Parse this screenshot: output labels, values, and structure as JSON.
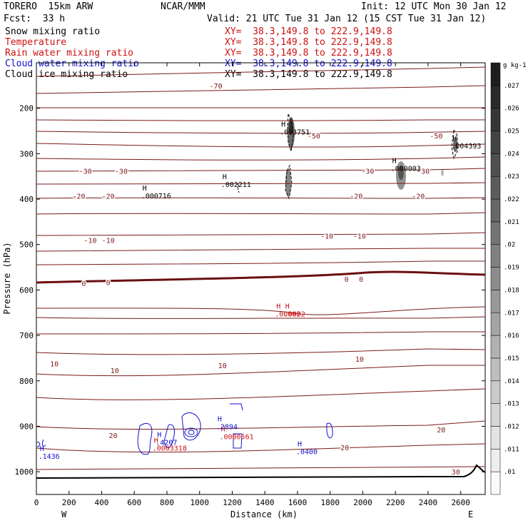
{
  "header": {
    "model": "TORERO  15km ARW",
    "center": "NCAR/MMM",
    "init": "Init: 12 UTC Mon 30 Jan 12",
    "fcst": "Fcst:  33 h",
    "valid": "Valid: 21 UTC Tue 31 Jan 12 (15 CST Tue 31 Jan 12)"
  },
  "legend": [
    {
      "label": "Snow mixing ratio",
      "xy": "XY=  38.3,149.8 to 222.9,149.8",
      "color": "#000000"
    },
    {
      "label": "Temperature",
      "xy": "XY=  38.3,149.8 to 222.9,149.8",
      "color": "#cc1111"
    },
    {
      "label": "Rain water mixing ratio",
      "xy": "XY=  38.3,149.8 to 222.9,149.8",
      "color": "#cc1111"
    },
    {
      "label": "Cloud water mixing ratio",
      "xy": "XY=  38.3,149.8 to 222.9,149.8",
      "color": "#1111cc"
    },
    {
      "label": "Cloud ice mixing ratio",
      "xy": "XY=  38.3,149.8 to 222.9,149.8",
      "color": "#000000"
    }
  ],
  "chart_data": {
    "type": "cross-section",
    "xlabel": "Distance (km)",
    "ylabel": "Pressure (hPa)",
    "xlim": [
      0,
      2750
    ],
    "ylim": [
      1050,
      100
    ],
    "xticks": [
      0,
      200,
      400,
      600,
      800,
      1000,
      1200,
      1400,
      1600,
      1800,
      2000,
      2200,
      2400,
      2600
    ],
    "yticks": [
      200,
      300,
      400,
      500,
      600,
      700,
      800,
      900,
      1000
    ],
    "x_end_labels": {
      "left": "W",
      "right": "E"
    },
    "colorbar": {
      "unit": "g kg-1",
      "ticks": [
        ".01",
        ".011",
        ".012",
        ".013",
        ".014",
        ".015",
        ".016",
        ".017",
        ".018",
        ".019",
        ".02",
        ".021",
        ".022",
        ".023",
        ".024",
        ".025",
        ".026",
        ".027"
      ]
    },
    "temperature_labels": [
      {
        "x": 1100,
        "p": 150,
        "t": "-70"
      },
      {
        "x": 1700,
        "p": 260,
        "t": "-50"
      },
      {
        "x": 2450,
        "p": 260,
        "t": "-50"
      },
      {
        "x": 300,
        "p": 338,
        "t": "-30"
      },
      {
        "x": 520,
        "p": 338,
        "t": "-30"
      },
      {
        "x": 2030,
        "p": 338,
        "t": "-30"
      },
      {
        "x": 2370,
        "p": 338,
        "t": "-30"
      },
      {
        "x": 260,
        "p": 393,
        "t": "-20"
      },
      {
        "x": 440,
        "p": 393,
        "t": "-20"
      },
      {
        "x": 1960,
        "p": 393,
        "t": "-20"
      },
      {
        "x": 2340,
        "p": 393,
        "t": "-20"
      },
      {
        "x": 330,
        "p": 490,
        "t": "-10"
      },
      {
        "x": 440,
        "p": 490,
        "t": "-10"
      },
      {
        "x": 1780,
        "p": 481,
        "t": "-10"
      },
      {
        "x": 1980,
        "p": 481,
        "t": "-10"
      },
      {
        "x": 290,
        "p": 585,
        "t": "0"
      },
      {
        "x": 440,
        "p": 583,
        "t": "0"
      },
      {
        "x": 1900,
        "p": 576,
        "t": "0"
      },
      {
        "x": 1990,
        "p": 576,
        "t": "0"
      },
      {
        "x": 110,
        "p": 762,
        "t": "10"
      },
      {
        "x": 480,
        "p": 777,
        "t": "10"
      },
      {
        "x": 1140,
        "p": 766,
        "t": "10"
      },
      {
        "x": 1980,
        "p": 752,
        "t": "10"
      },
      {
        "x": 470,
        "p": 920,
        "t": "20"
      },
      {
        "x": 1890,
        "p": 946,
        "t": "20"
      },
      {
        "x": 2480,
        "p": 907,
        "t": "20"
      },
      {
        "x": 2570,
        "p": 1000,
        "t": "30"
      }
    ],
    "maxima": [
      {
        "x": 650,
        "p": 395,
        "v": ".000716",
        "color": "#000000"
      },
      {
        "x": 1140,
        "p": 370,
        "v": ".002211",
        "color": "#000000"
      },
      {
        "x": 1500,
        "p": 255,
        "v": ".003751",
        "color": "#000000"
      },
      {
        "x": 2180,
        "p": 335,
        "v": ".000003",
        "color": "#000000"
      },
      {
        "x": 2550,
        "p": 285,
        "v": ".004393",
        "color": "#000000"
      },
      {
        "x": 1470,
        "p": 655,
        "v": ".00002",
        "color": "#cc1111"
      },
      {
        "x": 1525,
        "p": 655,
        "v": ".0002",
        "color": "#cc1111"
      },
      {
        "x": 1130,
        "p": 925,
        "v": ".0000561",
        "color": "#cc1111"
      },
      {
        "x": 720,
        "p": 950,
        "v": ".0003318",
        "color": "#cc1111"
      },
      {
        "x": 1110,
        "p": 903,
        "v": ".2894",
        "color": "#1111cc"
      },
      {
        "x": 740,
        "p": 938,
        "v": ".4207",
        "color": "#1111cc"
      },
      {
        "x": 20,
        "p": 968,
        "v": ".1436",
        "color": "#1111cc"
      },
      {
        "x": 1600,
        "p": 958,
        "v": ".0400",
        "color": "#1111cc"
      }
    ]
  }
}
